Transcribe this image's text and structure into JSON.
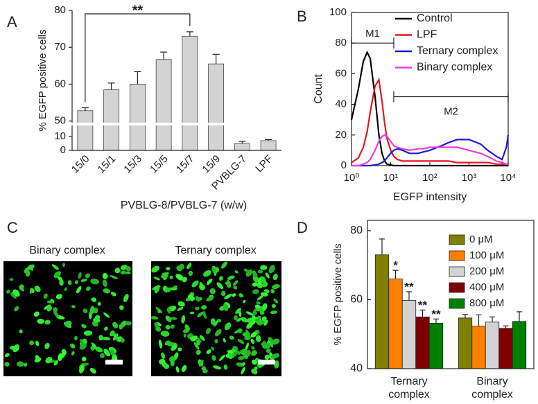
{
  "chart_data": [
    {
      "panel": "A",
      "type": "bar",
      "ylabel": "% EGFP positive cells",
      "xlabel": "PVBLG-8/PVBLG-7 (w/w)",
      "categories": [
        "15/0",
        "15/1",
        "15/3",
        "15/5",
        "15/7",
        "15/9",
        "PVBLG-7",
        "LPF"
      ],
      "values": [
        52.8,
        58.5,
        60,
        66.7,
        73,
        65.5,
        5,
        7
      ],
      "errors": [
        0.8,
        1.8,
        3.4,
        2,
        1.2,
        2.6,
        1.5,
        0.8
      ],
      "color": "#d3d3d3",
      "ylim": [
        0,
        80
      ],
      "y_break": [
        19,
        49
      ],
      "yticks": [
        0,
        10,
        50,
        60,
        70,
        80
      ],
      "annotations": [
        {
          "text": "**",
          "categories": [
            0,
            4
          ]
        }
      ]
    },
    {
      "panel": "B",
      "type": "line",
      "xlabel": "EGFP intensity",
      "ylabel": "Count",
      "xscale": "log",
      "xlim": [
        1,
        10000
      ],
      "xticks": [
        {
          "value": 1,
          "label": "10⁰"
        },
        {
          "value": 10,
          "label": "10¹"
        },
        {
          "value": 100,
          "label": "10²"
        },
        {
          "value": 1000,
          "label": "10³"
        },
        {
          "value": 10000,
          "label": "10⁴"
        }
      ],
      "ylim": [
        0,
        100
      ],
      "yticks": [
        0,
        20,
        40,
        60,
        80,
        100
      ],
      "legend": "top right",
      "x": [
        1,
        1.5,
        2,
        2.5,
        3,
        4,
        5,
        6,
        7,
        8,
        10,
        12,
        15,
        20,
        30,
        50,
        70,
        100,
        200,
        300,
        500,
        700,
        1000,
        2000,
        3000,
        5000,
        7000,
        9000,
        10000
      ],
      "series": [
        {
          "name": "Control",
          "color": "#000000",
          "values": [
            30,
            50,
            68,
            74,
            70,
            45,
            20,
            8,
            3,
            1,
            0.5,
            0,
            0,
            0,
            0,
            0,
            0,
            0,
            0,
            0,
            0,
            0,
            0,
            0,
            0,
            0,
            0,
            0,
            0
          ]
        },
        {
          "name": "LPF",
          "color": "#e8141b",
          "values": [
            2,
            5,
            12,
            22,
            35,
            52,
            56,
            42,
            28,
            18,
            10,
            6,
            4,
            3,
            3,
            3,
            3,
            3,
            3,
            3,
            2,
            2,
            2,
            2,
            2,
            1,
            1,
            1,
            1
          ]
        },
        {
          "name": "Ternary complex",
          "color": "#1a1adc",
          "values": [
            0,
            0,
            0,
            0,
            0,
            0.5,
            1,
            2,
            3,
            5,
            8,
            10,
            11,
            10,
            8,
            8,
            9,
            10,
            13,
            15,
            17,
            17,
            17,
            14,
            10,
            6,
            4,
            12,
            20
          ]
        },
        {
          "name": "Binary complex",
          "color": "#e83ce8",
          "values": [
            0,
            0,
            1,
            2,
            4,
            10,
            16,
            19,
            20,
            19,
            16,
            13,
            12,
            11,
            10,
            11,
            11,
            12,
            12,
            12,
            12,
            11,
            10,
            8,
            6,
            3,
            2,
            1,
            1
          ]
        }
      ],
      "gates": [
        {
          "label": "M1",
          "range": [
            1,
            12
          ],
          "y": 80
        },
        {
          "label": "M2",
          "range": [
            12,
            10000
          ],
          "y": 45
        }
      ]
    },
    {
      "panel": "D",
      "type": "grouped_bar",
      "ylabel": "% EGFP positive cells",
      "categories": [
        "Ternary complex",
        "Binary complex"
      ],
      "ylim": [
        40,
        83
      ],
      "yticks": [
        40,
        60,
        80
      ],
      "legend": "top right",
      "series": [
        {
          "name": "0 μM",
          "color": "#808000",
          "values": [
            73,
            54.7
          ],
          "errors": [
            4.6,
            1
          ]
        },
        {
          "name": "100 μM",
          "color": "#ff8000",
          "values": [
            66,
            52.3
          ],
          "errors": [
            2.5,
            3.3
          ]
        },
        {
          "name": "200 μM",
          "color": "#d3d3d3",
          "values": [
            59.8,
            53.5
          ],
          "errors": [
            2.5,
            1.5
          ]
        },
        {
          "name": "400 μM",
          "color": "#800000",
          "values": [
            55,
            51.7
          ],
          "errors": [
            2,
            0.7
          ]
        },
        {
          "name": "800 μM",
          "color": "#008000",
          "values": [
            53.2,
            53.7
          ],
          "errors": [
            1.2,
            2.8
          ]
        }
      ],
      "annotations": [
        {
          "text": "*",
          "series": 1,
          "category": 0
        },
        {
          "text": "**",
          "series": 2,
          "category": 0
        },
        {
          "text": "**",
          "series": 3,
          "category": 0
        },
        {
          "text": "**",
          "series": 4,
          "category": 0
        }
      ]
    }
  ],
  "images": {
    "panel": "C",
    "captions": [
      "Binary complex",
      "Ternary complex"
    ]
  }
}
